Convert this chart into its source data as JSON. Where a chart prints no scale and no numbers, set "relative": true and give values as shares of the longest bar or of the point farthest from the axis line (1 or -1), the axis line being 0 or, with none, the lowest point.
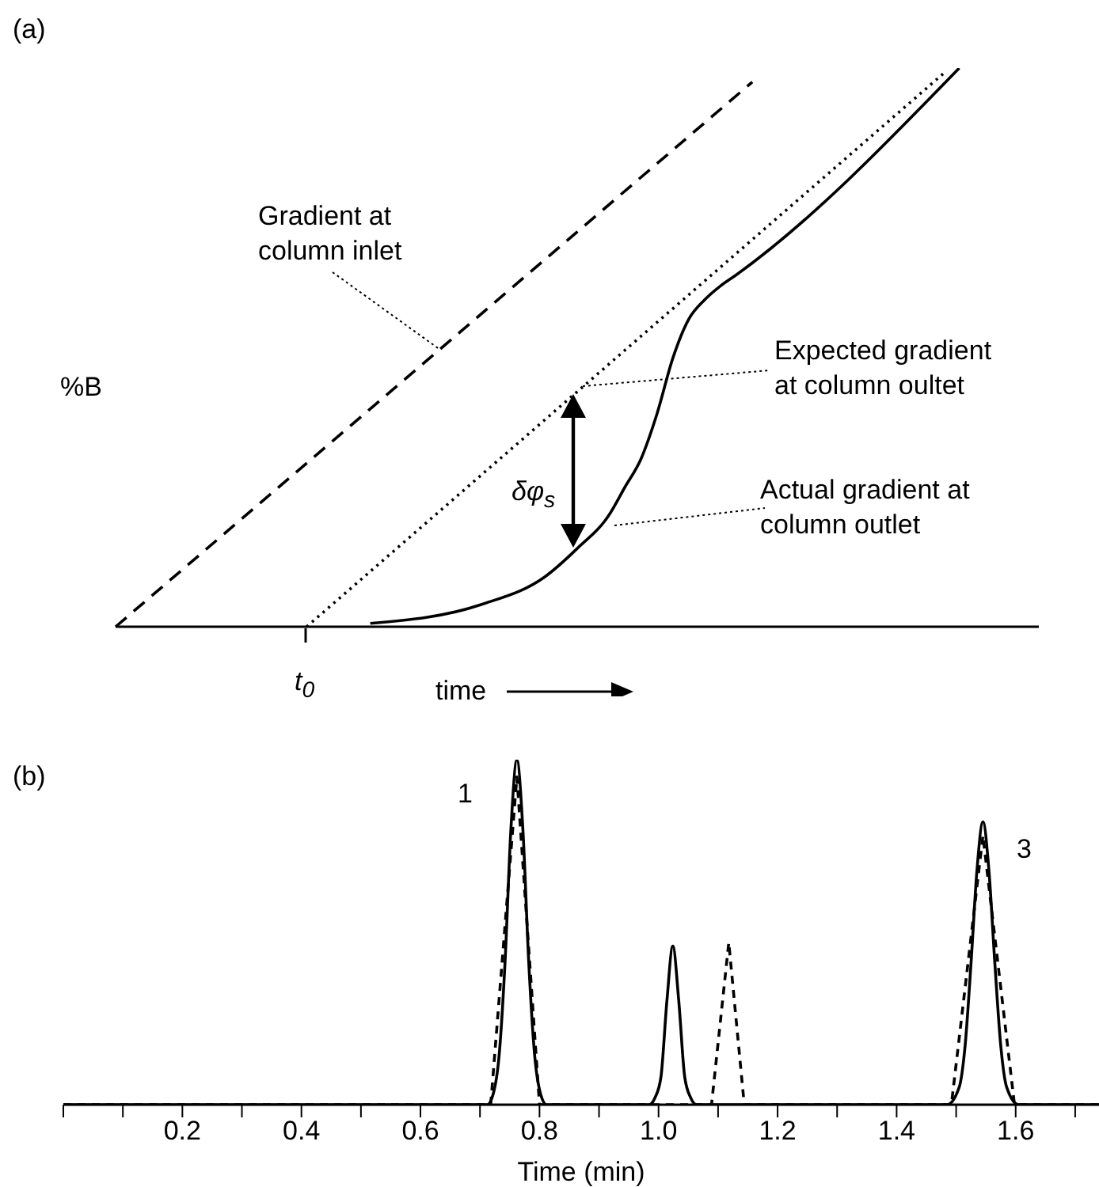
{
  "chart_data": [
    {
      "type": "line",
      "title": "(a)",
      "xlabel": "time",
      "ylabel": "%B",
      "relative": true,
      "marker": "none",
      "tick_labels": false,
      "categories": [
        null,
        null,
        null,
        null,
        null,
        null,
        null,
        null,
        null,
        null,
        null,
        null,
        null,
        null,
        null,
        null,
        null,
        null,
        null,
        null,
        null,
        null,
        null,
        null,
        null,
        null,
        null,
        null,
        null,
        null,
        null,
        null,
        null,
        null,
        null,
        null,
        null,
        null,
        null,
        null,
        null,
        null,
        null,
        null,
        null,
        null,
        null,
        null,
        null,
        null,
        null,
        null,
        null,
        null,
        null,
        null,
        null,
        null,
        null
      ],
      "series": [
        {
          "color": "#000000",
          "line_style": "dashed",
          "values": [
            0,
            null,
            null,
            null,
            null,
            null,
            null,
            null,
            null,
            null,
            null,
            null,
            null,
            null,
            null,
            null,
            null,
            null,
            null,
            null,
            null,
            null,
            null,
            null,
            null,
            null,
            null,
            null,
            null,
            null,
            null,
            null,
            null,
            null,
            null,
            null,
            null,
            null,
            null,
            null,
            0.975,
            null,
            null,
            null,
            null,
            null,
            null,
            null,
            null,
            null,
            null,
            null,
            null,
            null,
            null,
            null,
            null,
            null,
            null
          ]
        },
        {
          "color": "#000000",
          "line_style": "dotted",
          "values": [
            null,
            null,
            null,
            null,
            null,
            null,
            null,
            null,
            null,
            null,
            null,
            null,
            0,
            null,
            null,
            null,
            null,
            null,
            null,
            null,
            null,
            null,
            null,
            null,
            null,
            null,
            null,
            null,
            null,
            null,
            null,
            null,
            null,
            null,
            null,
            null,
            null,
            null,
            null,
            null,
            null,
            null,
            null,
            null,
            null,
            null,
            null,
            null,
            null,
            null,
            null,
            null,
            0.99,
            null,
            null,
            null,
            null,
            null,
            null
          ]
        },
        {
          "color": "#000000",
          "line_style": "solid",
          "values": [
            null,
            null,
            null,
            null,
            null,
            null,
            null,
            null,
            null,
            null,
            null,
            null,
            null,
            null,
            null,
            null,
            0.006,
            null,
            null,
            null,
            null,
            null,
            null,
            0.04,
            null,
            null,
            null,
            0.09,
            null,
            0.14,
            null,
            0.2,
            0.25,
            0.3,
            0.38,
            0.48,
            0.55,
            0.585,
            0.61,
            0.63,
            null,
            null,
            null,
            null,
            null,
            null,
            null,
            null,
            null,
            null,
            null,
            null,
            null,
            1.0,
            null,
            null,
            null,
            null,
            null
          ]
        }
      ],
      "annotations": [
        "Gradient at column inlet",
        "Expected gradient at column oultet",
        "Actual gradient at column outlet",
        "δφ$_{s}$",
        "t$_{0}$"
      ]
    },
    {
      "type": "line",
      "title": "(b)",
      "xlabel": "Time (min)",
      "relative": true,
      "marker": "none",
      "tick_labels": "x",
      "xlim": [
        0,
        1.74
      ],
      "xticks": [
        {
          "value": 0,
          "label": null
        },
        {
          "value": 0.1,
          "label": null
        },
        0.2,
        {
          "value": 0.3,
          "label": null
        },
        0.4,
        {
          "value": 0.5,
          "label": null
        },
        0.6,
        {
          "value": 0.7,
          "label": null
        },
        0.8,
        {
          "value": 0.9,
          "label": null
        },
        {
          "value": 1,
          "label": "1.0"
        },
        {
          "value": 1.1,
          "label": null
        },
        1.2,
        {
          "value": 1.3,
          "label": null
        },
        1.4,
        {
          "value": 1.5,
          "label": null
        },
        1.6,
        {
          "value": 1.7,
          "label": null
        }
      ],
      "series": [
        {
          "color": "#000000",
          "line_style": "solid",
          "x": [
            0,
            0.712,
            0.722,
            0.732,
            0.742,
            0.752,
            0.762,
            0.772,
            0.782,
            0.792,
            0.802,
            0.812,
            0.984,
            0.994,
            1.004,
            1.014,
            1.024,
            1.034,
            1.044,
            1.054,
            1.064,
            1.485,
            1.505,
            1.515,
            1.525,
            1.535,
            1.545,
            1.555,
            1.565,
            1.575,
            1.585,
            1.605,
            1.74
          ],
          "values": [
            0,
            0,
            0.03,
            0.14,
            0.41,
            0.8,
            1,
            0.8,
            0.41,
            0.14,
            0.03,
            0,
            0,
            0.02,
            0.08,
            0.3,
            0.46,
            0.3,
            0.08,
            0.02,
            0,
            0,
            0.05,
            0.17,
            0.41,
            0.68,
            0.82,
            0.68,
            0.41,
            0.17,
            0.05,
            0,
            0
          ]
        },
        {
          "color": "#000000",
          "line_style": "dashed",
          "x": [
            0,
            0.718,
            0.762,
            0.8,
            1.089,
            1.118,
            1.144,
            1.492,
            1.545,
            1.598,
            1.74
          ],
          "values": [
            0,
            0,
            0.95,
            0,
            0,
            0.47,
            0,
            0,
            0.78,
            0,
            0
          ]
        }
      ],
      "annotations": [
        "1",
        "3"
      ]
    }
  ]
}
